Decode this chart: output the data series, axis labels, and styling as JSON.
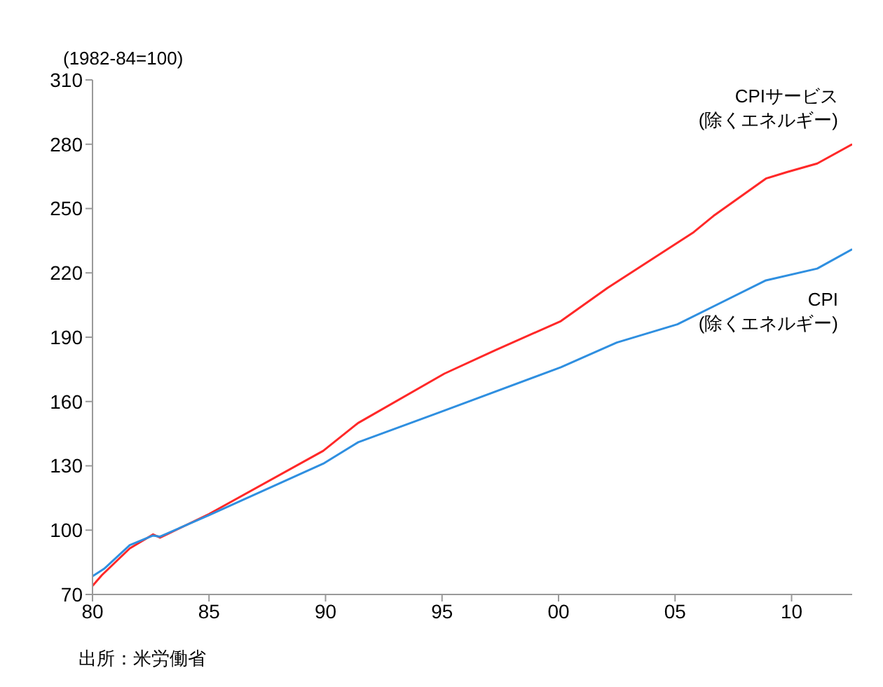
{
  "chart_data": {
    "type": "line",
    "ylabel": "(1982-84=100)",
    "annotations": [
      "出所：米労働省"
    ],
    "xlim": [
      1980,
      2012.6
    ],
    "xticks": [
      {
        "value": 1980,
        "label": "80"
      },
      {
        "value": 1985,
        "label": "85"
      },
      {
        "value": 1990,
        "label": "90"
      },
      {
        "value": 1995,
        "label": "95"
      },
      {
        "value": 2000,
        "label": "00"
      },
      {
        "value": 2005,
        "label": "05"
      },
      {
        "value": 2010,
        "label": "10"
      }
    ],
    "ylim": [
      70,
      310
    ],
    "yticks": [
      70,
      100,
      130,
      160,
      190,
      220,
      250,
      280,
      310
    ],
    "grid": false,
    "legend": false,
    "marker": "none",
    "line_style": "solid",
    "series": [
      {
        "name": "CPIサービス\n(除くエネルギー)",
        "color": "#ff2828",
        "x": [
          1980,
          1980.4,
          1981.6,
          1982.6,
          1982.9,
          1985,
          1989.9,
          1991.4,
          1995.1,
          1997.3,
          2000.1,
          2002.1,
          2005.8,
          2006.7,
          2008.9,
          2009.8,
          2011.1,
          2012.6
        ],
        "values": [
          74,
          79,
          91.5,
          98,
          96.5,
          107.5,
          137,
          150,
          173,
          184,
          197.5,
          213,
          239,
          247,
          264,
          267,
          271,
          280
        ]
      },
      {
        "name": "CPI\n(除くエネルギー)",
        "color": "#2f8fe0",
        "x": [
          1980,
          1980.5,
          1981.6,
          1982.6,
          1982.9,
          1985,
          1989.9,
          1991.4,
          1994.9,
          2000.1,
          2002.5,
          2005.1,
          2008.9,
          2011.1,
          2012.6
        ],
        "values": [
          78.5,
          82,
          93,
          97.5,
          97,
          107,
          131,
          141,
          155,
          176,
          187.5,
          196,
          216.5,
          222,
          231
        ]
      }
    ]
  }
}
